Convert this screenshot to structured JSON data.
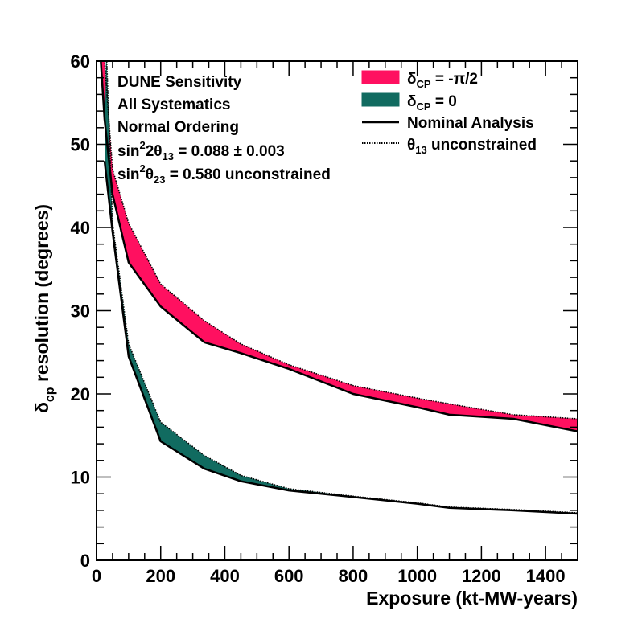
{
  "chart_data": {
    "type": "area",
    "xlabel": "Exposure (kt-MW-years)",
    "ylabel": "δcp resolution (degrees)",
    "ylabel_parts": {
      "symbol": "δ",
      "sub": "cp",
      "rest": " resolution (degrees)"
    },
    "xlim": [
      0,
      1500
    ],
    "ylim": [
      0,
      60
    ],
    "x_ticks": [
      0,
      200,
      400,
      600,
      800,
      1000,
      1200,
      1400
    ],
    "y_ticks": [
      0,
      10,
      20,
      30,
      40,
      50,
      60
    ],
    "grid": false,
    "annotations": [
      {
        "text": "DUNE Sensitivity"
      },
      {
        "text": "All Systematics"
      },
      {
        "text": "Normal Ordering"
      },
      {
        "text": "sin²2θ₁₃ = 0.088 ± 0.003",
        "parts": [
          "sin",
          "2",
          "2θ",
          "13",
          " = 0.088 ± 0.003"
        ]
      },
      {
        "text": "sin²θ₂₃ = 0.580 unconstrained",
        "parts": [
          "sin",
          "2",
          "θ",
          "23",
          " = 0.580 unconstrained"
        ]
      }
    ],
    "legend": {
      "placement": "top-right",
      "entries": [
        {
          "label": "δCP = -π/2",
          "main": "δ",
          "sub": "CP",
          "rest": " = -π/2",
          "kind": "fill",
          "color": "#ff1060"
        },
        {
          "label": "δCP = 0",
          "main": "δ",
          "sub": "CP",
          "rest": " = 0",
          "kind": "fill",
          "color": "#116b60"
        },
        {
          "label": "Nominal Analysis",
          "main": "Nominal Analysis",
          "sub": "",
          "rest": "",
          "kind": "solid-line",
          "color": "#000000"
        },
        {
          "label": "θ13 unconstrained",
          "main": "θ",
          "sub": "13",
          "rest": " unconstrained",
          "kind": "dotted-line",
          "color": "#000000"
        }
      ]
    },
    "series": [
      {
        "name": "δCP = -π/2",
        "color": "#ff1060",
        "nominal": {
          "x": [
            10,
            25,
            50,
            100,
            200,
            336,
            450,
            600,
            800,
            1000,
            1100,
            1300,
            1500
          ],
          "y": [
            62,
            53,
            44,
            35.8,
            30.5,
            26.2,
            24.9,
            23.0,
            20.0,
            18.4,
            17.5,
            17.0,
            15.5
          ]
        },
        "unconstrained": {
          "x": [
            10,
            25,
            50,
            100,
            200,
            336,
            450,
            600,
            800,
            1000,
            1100,
            1300,
            1500
          ],
          "y": [
            62,
            60,
            47,
            40.5,
            33.2,
            28.8,
            26.0,
            23.5,
            21.0,
            19.5,
            18.8,
            17.5,
            17.0
          ]
        }
      },
      {
        "name": "δCP = 0",
        "color": "#116b60",
        "nominal": {
          "x": [
            25,
            50,
            100,
            200,
            336,
            450,
            600,
            800,
            1000,
            1100,
            1300,
            1500
          ],
          "y": [
            48,
            39.5,
            24.5,
            14.3,
            11.0,
            9.5,
            8.4,
            7.6,
            6.8,
            6.3,
            6.0,
            5.6
          ]
        },
        "unconstrained": {
          "x": [
            30,
            50,
            100,
            200,
            336,
            450,
            600,
            800,
            1000,
            1100,
            1300,
            1500
          ],
          "y": [
            62,
            40.5,
            26.0,
            16.6,
            12.6,
            10.2,
            8.6,
            7.7,
            6.9,
            6.4,
            6.1,
            5.7
          ]
        }
      }
    ]
  }
}
